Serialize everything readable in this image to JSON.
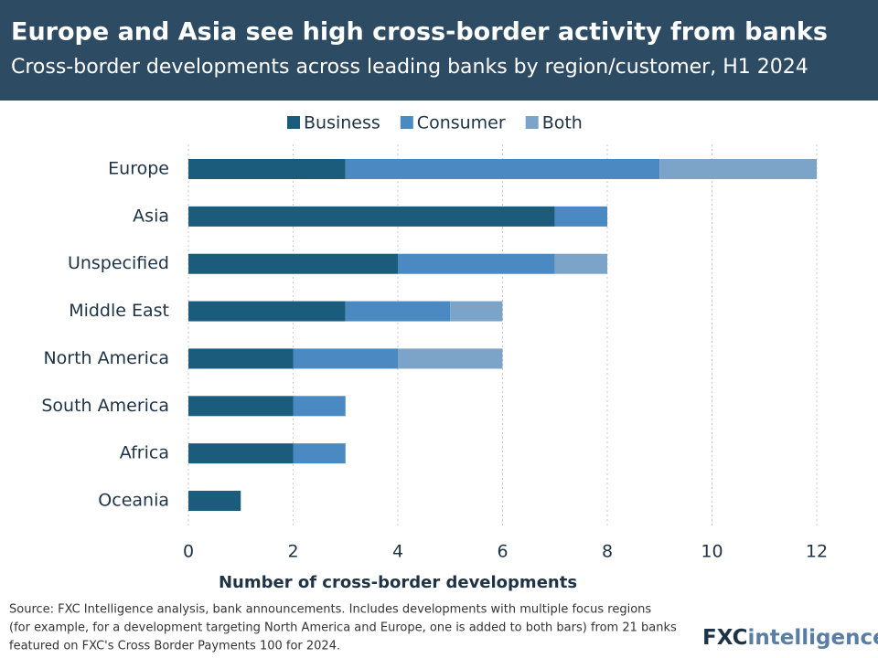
{
  "chart_data": {
    "type": "stacked-bar-horizontal",
    "title": "Europe and Asia see high cross-border activity from banks",
    "subtitle": "Cross-border developments across leading banks by region/customer, H1 2024",
    "categories": [
      "Europe",
      "Asia",
      "Unspecified",
      "Middle East",
      "North America",
      "South America",
      "Africa",
      "Oceania"
    ],
    "series": [
      {
        "name": "Business",
        "color": "#1b5b7c",
        "values": [
          3,
          7,
          4,
          3,
          2,
          2,
          2,
          1
        ]
      },
      {
        "name": "Consumer",
        "color": "#4a89c2",
        "values": [
          6,
          1,
          3,
          2,
          2,
          1,
          1,
          0
        ]
      },
      {
        "name": "Both",
        "color": "#7ca4c9",
        "values": [
          3,
          0,
          1,
          1,
          2,
          0,
          0,
          0
        ]
      }
    ],
    "xlim": [
      0,
      12
    ],
    "xticks": [
      0,
      2,
      4,
      6,
      8,
      10,
      12
    ],
    "grid": true,
    "x_label": "Number of cross-border developments",
    "legend": "top"
  },
  "source": [
    "Source: FXC Intelligence analysis, bank announcements. Includes developments with multiple focus regions",
    "(for example, for a development targeting North America and Europe, one is added to both bars) from 21 banks",
    "featured on FXC's Cross Border Payments 100 for 2024."
  ],
  "logo": {
    "prefix": "FXC",
    "suffix": "intelligence"
  }
}
